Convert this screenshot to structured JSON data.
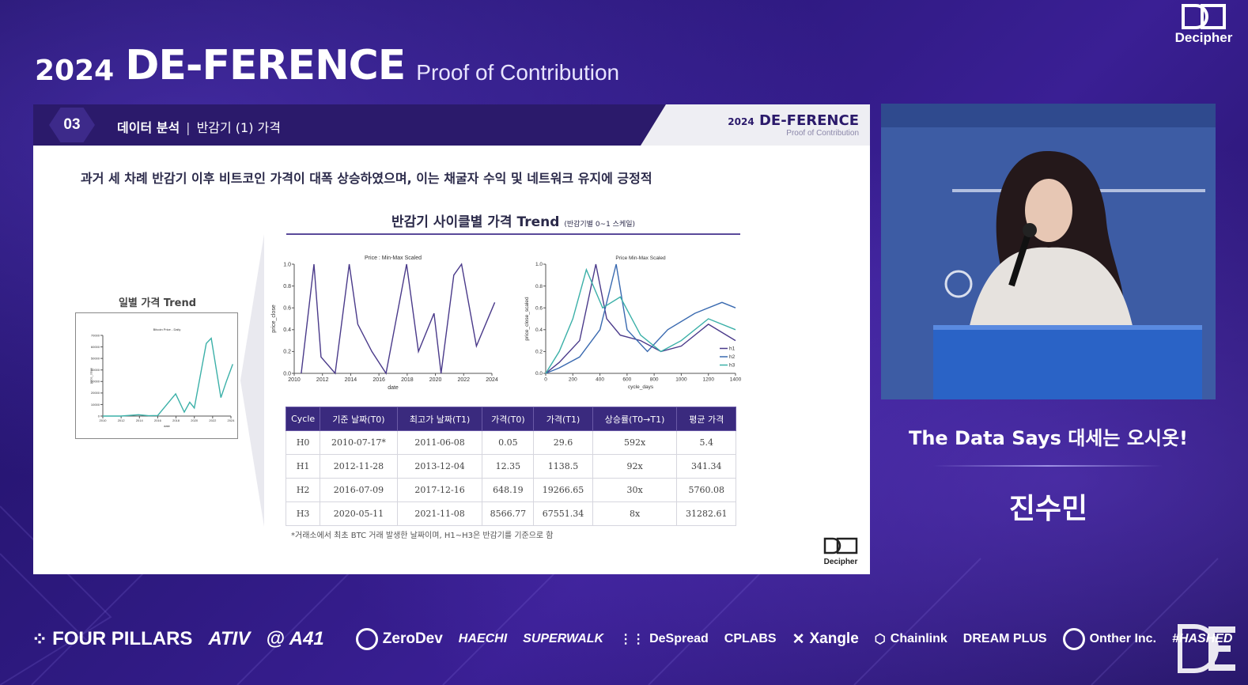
{
  "event": {
    "year": "2024",
    "name": "DE-FERENCE",
    "subtitle": "Proof of Contribution",
    "corner_logo_text": "Decipher"
  },
  "slide": {
    "section_number": "03",
    "section_title": "데이터 분석",
    "section_subtitle": "반감기 (1) 가격",
    "brand_year": "2024",
    "brand_name": "DE-FERENCE",
    "brand_sub": "Proof of Contribution",
    "lead_text": "과거 세 차례 반감기 이후 비트코인 가격이 대폭 상승하였으며, 이는 채굴자 수익 및 네트워크 유지에 긍정적",
    "chart_title": "반감기 사이클별 가격 Trend",
    "chart_title_note": "(반감기별 0~1 스케일)",
    "left_caption": "일별 가격 Trend",
    "footnote": "*거래소에서 최초 BTC 거래 발생한 날짜이며, H1~H3은 반감기를 기준으로 함",
    "logo_text": "Decipher"
  },
  "table": {
    "headers": [
      "Cycle",
      "기준 날짜(T0)",
      "최고가 날짜(T1)",
      "가격(T0)",
      "가격(T1)",
      "상승률(T0→T1)",
      "평균 가격"
    ],
    "rows": [
      [
        "H0",
        "2010-07-17*",
        "2011-06-08",
        "0.05",
        "29.6",
        "592x",
        "5.4"
      ],
      [
        "H1",
        "2012-11-28",
        "2013-12-04",
        "12.35",
        "1138.5",
        "92x",
        "341.34"
      ],
      [
        "H2",
        "2016-07-09",
        "2017-12-16",
        "648.19",
        "19266.65",
        "30x",
        "5760.08"
      ],
      [
        "H3",
        "2020-05-11",
        "2021-11-08",
        "8566.77",
        "67551.34",
        "8x",
        "31282.61"
      ]
    ]
  },
  "chart_data": [
    {
      "type": "line",
      "title": "Bitcoin Price - Daily",
      "xlabel": "date",
      "ylabel": "price_close",
      "x_ticks": [
        "2010",
        "2012",
        "2014",
        "2016",
        "2018",
        "2020",
        "2022",
        "2024"
      ],
      "y_ticks": [
        "0",
        "10000",
        "20000",
        "30000",
        "40000",
        "50000",
        "60000",
        "70000"
      ],
      "ylim": [
        0,
        70000
      ],
      "x": [
        2010,
        2012,
        2013.9,
        2015,
        2016,
        2017.96,
        2018.9,
        2019.5,
        2020,
        2021.3,
        2021.85,
        2022.9,
        2023.5,
        2024.2
      ],
      "y": [
        0,
        10,
        1138,
        250,
        450,
        19266,
        3400,
        12000,
        7000,
        63000,
        67551,
        16000,
        30000,
        45000
      ],
      "series": [
        {
          "name": "price_close"
        }
      ],
      "grid": false
    },
    {
      "type": "line",
      "title": "Price : Min-Max Scaled",
      "xlabel": "date",
      "ylabel": "price_close",
      "x_ticks": [
        "2010",
        "2012",
        "2014",
        "2016",
        "2018",
        "2020",
        "2022",
        "2024"
      ],
      "y_ticks": [
        "0.0",
        "0.2",
        "0.4",
        "0.6",
        "0.8",
        "1.0"
      ],
      "ylim": [
        0,
        1
      ],
      "x": [
        2010.5,
        2011.4,
        2011.9,
        2012.9,
        2013.9,
        2014.5,
        2015.5,
        2016.5,
        2017.96,
        2018.8,
        2019.9,
        2020.4,
        2021.3,
        2021.85,
        2022.9,
        2024.2
      ],
      "y": [
        0.0,
        1.0,
        0.15,
        0.0,
        1.0,
        0.45,
        0.2,
        0.0,
        1.0,
        0.2,
        0.55,
        0.0,
        0.9,
        1.0,
        0.25,
        0.65
      ],
      "grid": false
    },
    {
      "type": "line",
      "title": "Price Min-Max Scaled",
      "xlabel": "cycle_days",
      "ylabel": "price_close_scaled",
      "x_ticks": [
        "0",
        "200",
        "400",
        "600",
        "800",
        "1000",
        "1200",
        "1400"
      ],
      "y_ticks": [
        "0.0",
        "0.2",
        "0.4",
        "0.6",
        "0.8",
        "1.0"
      ],
      "ylim": [
        0,
        1
      ],
      "legend_position": "bottom-right",
      "series": [
        {
          "name": "h1",
          "x": [
            0,
            100,
            250,
            370,
            450,
            550,
            700,
            850,
            1000,
            1200,
            1400
          ],
          "y": [
            0,
            0.1,
            0.3,
            1.0,
            0.5,
            0.35,
            0.3,
            0.2,
            0.25,
            0.45,
            0.3
          ]
        },
        {
          "name": "h2",
          "x": [
            0,
            100,
            250,
            400,
            520,
            600,
            750,
            900,
            1100,
            1300,
            1400
          ],
          "y": [
            0,
            0.05,
            0.15,
            0.4,
            1.0,
            0.4,
            0.2,
            0.4,
            0.55,
            0.65,
            0.6
          ]
        },
        {
          "name": "h3",
          "x": [
            0,
            100,
            200,
            300,
            420,
            550,
            700,
            850,
            1000,
            1200,
            1400
          ],
          "y": [
            0,
            0.2,
            0.5,
            0.95,
            0.6,
            0.7,
            0.35,
            0.2,
            0.3,
            0.5,
            0.4
          ]
        }
      ]
    }
  ],
  "speaker": {
    "caption": "The Data Says 대세는 오시옷!",
    "name": "진수민"
  },
  "sponsors": [
    "FOUR PILLARS",
    "ATIV",
    "A41",
    "ZeroDev",
    "HAECHI",
    "SUPERWALK",
    "DeSpread",
    "CPLABS",
    "Xangle",
    "Chainlink",
    "DREAM PLUS",
    "Onther Inc.",
    "#HASHED"
  ],
  "colors": {
    "background": "#2a1670",
    "header_band": "#2b1a6b",
    "table_header": "#3a2a7e",
    "line_purple": "#4a3a8a",
    "line_teal": "#3bb0a8",
    "line_blue": "#3a6ab0"
  }
}
